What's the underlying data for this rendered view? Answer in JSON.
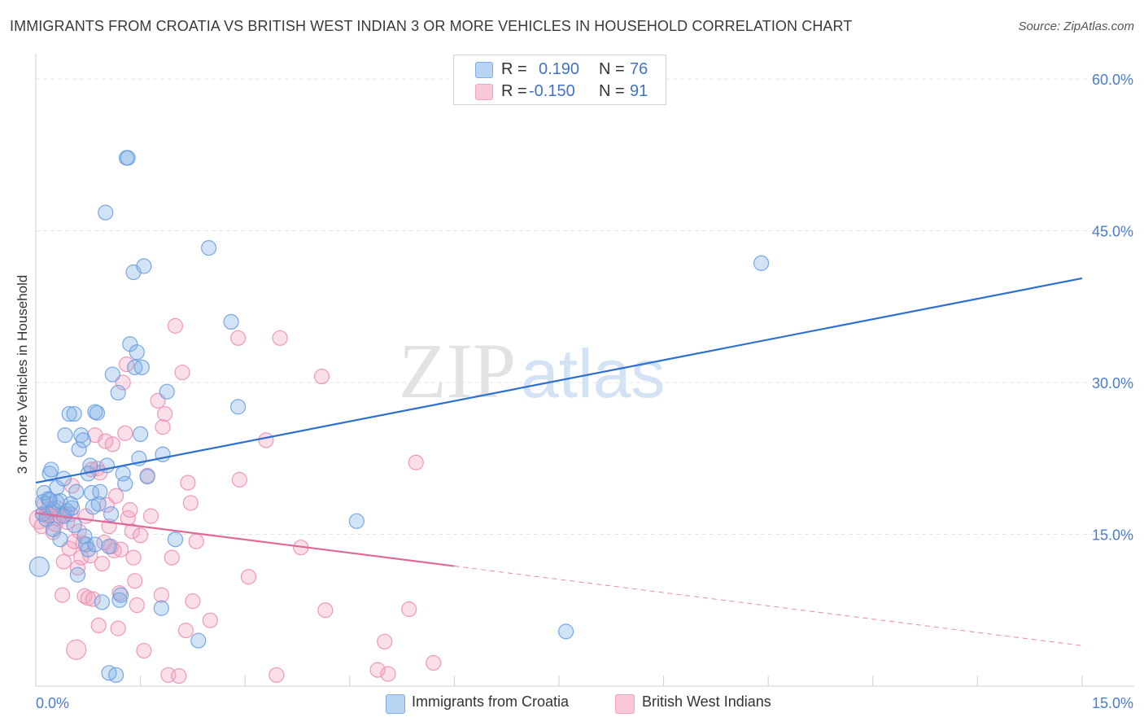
{
  "header": {
    "title": "IMMIGRANTS FROM CROATIA VS BRITISH WEST INDIAN 3 OR MORE VEHICLES IN HOUSEHOLD CORRELATION CHART",
    "source": "Source: ZipAtlas.com"
  },
  "watermark": {
    "zip": "ZIP",
    "atlas": "atlas"
  },
  "legend_top": {
    "rows": [
      {
        "r_label": "R =",
        "r_value": "0.190",
        "n_label": "N =",
        "n_value": "76"
      },
      {
        "r_label": "R =",
        "r_value": "-0.150",
        "n_label": "N =",
        "n_value": "91"
      }
    ]
  },
  "legend_bottom": {
    "items": [
      {
        "label": "Immigrants from Croatia"
      },
      {
        "label": "British West Indians"
      }
    ]
  },
  "chart_data": {
    "type": "scatter",
    "title": "IMMIGRANTS FROM CROATIA VS BRITISH WEST INDIAN 3 OR MORE VEHICLES IN HOUSEHOLD CORRELATION CHART",
    "xlabel": "",
    "ylabel": "3 or more Vehicles in Household",
    "xlim": [
      0,
      15
    ],
    "ylim": [
      0,
      60
    ],
    "x_tick_labels": [
      "0.0%",
      "15.0%"
    ],
    "y_ticks": [
      15,
      30,
      45,
      60
    ],
    "y_tick_labels": [
      "15.0%",
      "30.0%",
      "45.0%",
      "60.0%"
    ],
    "grid": true,
    "legend_position": "top-center",
    "colors": {
      "blue": "#7eaee6",
      "pink": "#f1a3bf",
      "blue_line": "#2e6fcf",
      "pink_line": "#e0699a",
      "tick_label": "#4a7ccc"
    },
    "series": [
      {
        "name": "Immigrants from Croatia",
        "color": "#7eaee6",
        "r": 0.19,
        "n": 76,
        "trend": {
          "x0": 0.0,
          "y0": 20.1,
          "x1": 15.0,
          "y1": 40.3
        },
        "points": [
          [
            0.05,
            11.8
          ],
          [
            0.1,
            17.0
          ],
          [
            0.1,
            18.2
          ],
          [
            0.12,
            19.1
          ],
          [
            0.15,
            16.5
          ],
          [
            0.18,
            18.5
          ],
          [
            0.2,
            21.0
          ],
          [
            0.22,
            21.4
          ],
          [
            0.25,
            17.5
          ],
          [
            0.25,
            15.5
          ],
          [
            0.3,
            19.6
          ],
          [
            0.3,
            18.2
          ],
          [
            0.35,
            14.5
          ],
          [
            0.35,
            18.3
          ],
          [
            0.4,
            20.5
          ],
          [
            0.42,
            24.8
          ],
          [
            0.45,
            17.3
          ],
          [
            0.48,
            26.9
          ],
          [
            0.5,
            18.0
          ],
          [
            0.52,
            17.6
          ],
          [
            0.55,
            26.9
          ],
          [
            0.55,
            15.9
          ],
          [
            0.58,
            19.2
          ],
          [
            0.6,
            11.0
          ],
          [
            0.62,
            23.4
          ],
          [
            0.65,
            24.8
          ],
          [
            0.68,
            24.3
          ],
          [
            0.7,
            14.8
          ],
          [
            0.72,
            14.0
          ],
          [
            0.75,
            13.5
          ],
          [
            0.75,
            21.0
          ],
          [
            0.78,
            21.8
          ],
          [
            0.8,
            19.1
          ],
          [
            0.82,
            17.7
          ],
          [
            0.85,
            14.0
          ],
          [
            0.85,
            27.1
          ],
          [
            0.88,
            27.0
          ],
          [
            0.9,
            18.0
          ],
          [
            0.92,
            19.2
          ],
          [
            0.95,
            8.3
          ],
          [
            1.0,
            46.8
          ],
          [
            1.02,
            21.8
          ],
          [
            1.05,
            13.8
          ],
          [
            1.05,
            1.3
          ],
          [
            1.08,
            17.0
          ],
          [
            1.1,
            30.8
          ],
          [
            1.15,
            1.1
          ],
          [
            1.18,
            29.0
          ],
          [
            1.2,
            8.5
          ],
          [
            1.22,
            9.0
          ],
          [
            1.25,
            21.0
          ],
          [
            1.28,
            20.0
          ],
          [
            1.3,
            52.2
          ],
          [
            1.32,
            52.2
          ],
          [
            1.35,
            33.8
          ],
          [
            1.4,
            40.9
          ],
          [
            1.42,
            31.5
          ],
          [
            1.45,
            33.0
          ],
          [
            1.48,
            22.5
          ],
          [
            1.5,
            24.9
          ],
          [
            1.52,
            31.5
          ],
          [
            1.55,
            41.5
          ],
          [
            1.6,
            20.7
          ],
          [
            1.8,
            7.7
          ],
          [
            1.82,
            22.9
          ],
          [
            1.88,
            29.1
          ],
          [
            2.0,
            14.5
          ],
          [
            2.33,
            4.5
          ],
          [
            2.48,
            43.3
          ],
          [
            2.8,
            36.0
          ],
          [
            2.9,
            27.6
          ],
          [
            4.6,
            16.3
          ],
          [
            7.6,
            5.4
          ],
          [
            10.4,
            41.8
          ],
          [
            0.2,
            18.4
          ],
          [
            0.4,
            16.8
          ]
        ]
      },
      {
        "name": "British West Indians",
        "color": "#f1a3bf",
        "r": -0.15,
        "n": 91,
        "trend": {
          "x0": 0.0,
          "y0": 17.1,
          "x1": 15.0,
          "y1": 4.0,
          "solid_until_x": 6.0
        },
        "points": [
          [
            0.05,
            16.5
          ],
          [
            0.08,
            15.8
          ],
          [
            0.1,
            17.0
          ],
          [
            0.12,
            18.0
          ],
          [
            0.15,
            16.9
          ],
          [
            0.18,
            17.5
          ],
          [
            0.2,
            16.8
          ],
          [
            0.22,
            17.2
          ],
          [
            0.25,
            15.2
          ],
          [
            0.28,
            16.0
          ],
          [
            0.3,
            17.6
          ],
          [
            0.32,
            16.6
          ],
          [
            0.35,
            16.8
          ],
          [
            0.38,
            9.0
          ],
          [
            0.4,
            12.3
          ],
          [
            0.42,
            17.0
          ],
          [
            0.45,
            16.2
          ],
          [
            0.48,
            13.6
          ],
          [
            0.5,
            17.0
          ],
          [
            0.52,
            19.8
          ],
          [
            0.55,
            14.3
          ],
          [
            0.58,
            3.6
          ],
          [
            0.6,
            11.7
          ],
          [
            0.62,
            15.3
          ],
          [
            0.65,
            12.7
          ],
          [
            0.68,
            14.1
          ],
          [
            0.7,
            8.9
          ],
          [
            0.72,
            16.8
          ],
          [
            0.75,
            8.7
          ],
          [
            0.78,
            12.9
          ],
          [
            0.8,
            21.4
          ],
          [
            0.82,
            8.6
          ],
          [
            0.85,
            24.8
          ],
          [
            0.88,
            21.5
          ],
          [
            0.9,
            6.0
          ],
          [
            0.92,
            21.1
          ],
          [
            0.95,
            12.1
          ],
          [
            0.98,
            14.2
          ],
          [
            1.0,
            24.2
          ],
          [
            1.02,
            17.9
          ],
          [
            1.05,
            15.8
          ],
          [
            1.08,
            13.8
          ],
          [
            1.1,
            23.9
          ],
          [
            1.12,
            13.4
          ],
          [
            1.15,
            18.8
          ],
          [
            1.18,
            5.7
          ],
          [
            1.2,
            9.2
          ],
          [
            1.22,
            13.5
          ],
          [
            1.25,
            30.0
          ],
          [
            1.28,
            25.0
          ],
          [
            1.3,
            31.8
          ],
          [
            1.32,
            16.6
          ],
          [
            1.35,
            17.4
          ],
          [
            1.38,
            15.3
          ],
          [
            1.4,
            12.7
          ],
          [
            1.42,
            10.4
          ],
          [
            1.45,
            8.0
          ],
          [
            1.5,
            14.9
          ],
          [
            1.55,
            3.5
          ],
          [
            1.6,
            20.8
          ],
          [
            1.65,
            16.8
          ],
          [
            1.75,
            28.2
          ],
          [
            1.8,
            9.0
          ],
          [
            1.82,
            25.6
          ],
          [
            1.85,
            26.9
          ],
          [
            1.9,
            1.1
          ],
          [
            1.95,
            12.7
          ],
          [
            2.0,
            35.6
          ],
          [
            2.05,
            1.0
          ],
          [
            2.1,
            31.0
          ],
          [
            2.15,
            5.5
          ],
          [
            2.18,
            20.1
          ],
          [
            2.22,
            18.1
          ],
          [
            2.25,
            8.4
          ],
          [
            2.3,
            14.3
          ],
          [
            2.5,
            6.5
          ],
          [
            2.9,
            34.4
          ],
          [
            2.92,
            20.4
          ],
          [
            3.05,
            10.8
          ],
          [
            3.3,
            24.3
          ],
          [
            3.45,
            1.1
          ],
          [
            3.5,
            34.4
          ],
          [
            3.8,
            13.7
          ],
          [
            4.1,
            30.6
          ],
          [
            4.15,
            7.5
          ],
          [
            4.9,
            1.6
          ],
          [
            5.0,
            4.4
          ],
          [
            5.05,
            1.2
          ],
          [
            5.35,
            7.6
          ],
          [
            5.45,
            22.1
          ],
          [
            5.7,
            2.3
          ]
        ]
      }
    ]
  }
}
